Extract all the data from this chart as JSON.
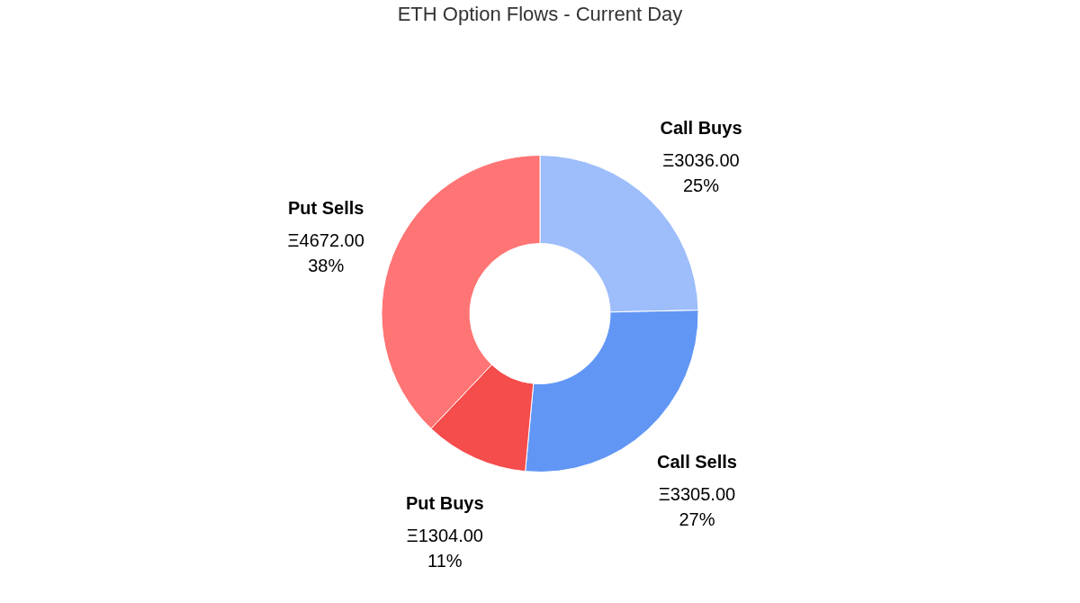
{
  "chart_data": {
    "type": "donut",
    "title": "ETH Option Flows - Current Day",
    "categories": [
      "Call Buys",
      "Call Sells",
      "Put Buys",
      "Put Sells"
    ],
    "values": [
      3036.0,
      3305.0,
      1304.0,
      4672.0
    ],
    "colors": [
      "#9dbdfb",
      "#6196f5",
      "#f54c4c",
      "#ff7474"
    ],
    "value_labels": [
      "Ξ3036.00\n25%",
      "Ξ3305.00\n27%",
      "Ξ1304.00\n11%",
      "Ξ4672.00\n38%"
    ],
    "legend": false
  }
}
